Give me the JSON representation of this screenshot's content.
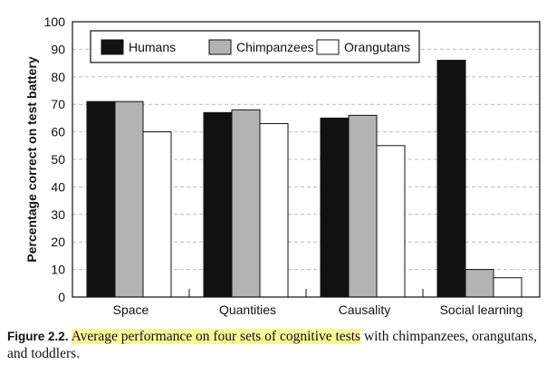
{
  "chart_data": {
    "type": "bar",
    "categories": [
      "Space",
      "Quantities",
      "Causality",
      "Social learning"
    ],
    "series": [
      {
        "name": "Humans",
        "values": [
          71,
          67,
          65,
          86
        ],
        "color": "#111111"
      },
      {
        "name": "Chimpanzees",
        "values": [
          71,
          68,
          66,
          10
        ],
        "color": "#b3b3b3"
      },
      {
        "name": "Orangutans",
        "values": [
          60,
          63,
          55,
          7
        ],
        "color": "#ffffff"
      }
    ],
    "ylabel": "Percentage correct on test battery",
    "xlabel": "",
    "ylim": [
      0,
      100
    ],
    "yticks": [
      0,
      10,
      20,
      30,
      40,
      50,
      60,
      70,
      80,
      90,
      100
    ],
    "grid": true,
    "legend": "top-left"
  },
  "caption": {
    "label": "Figure 2.2.",
    "highlighted": "Average performance on four sets of cognitive tests",
    "rest": " with chimpanzees, orangutans, and toddlers."
  }
}
